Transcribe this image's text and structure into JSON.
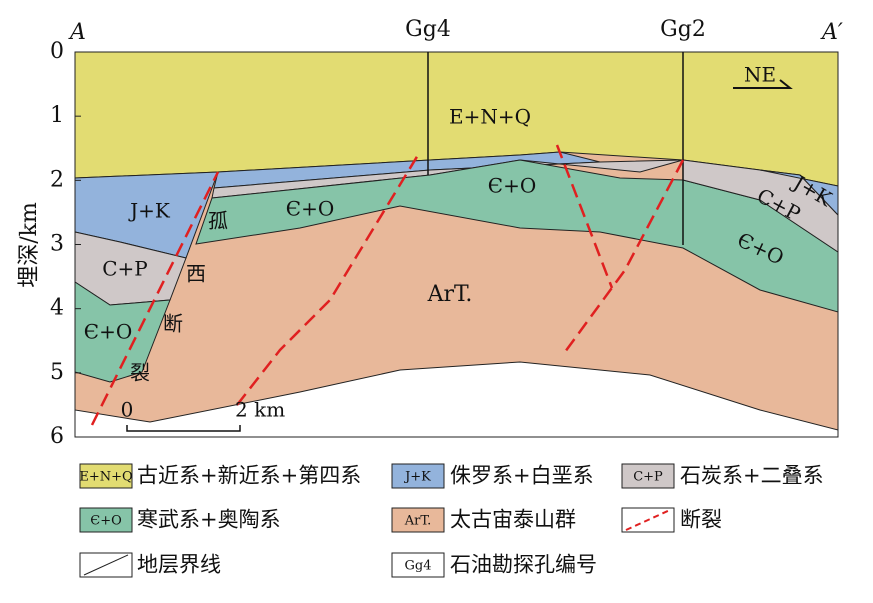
{
  "header": {
    "corner_left": "A",
    "corner_right": "A′",
    "boreholes": [
      "Gg4",
      "Gg2"
    ],
    "direction": "NE"
  },
  "axis": {
    "label": "埋深/km",
    "ticks": [
      0,
      1,
      2,
      3,
      4,
      5,
      6
    ]
  },
  "units": {
    "top": "E+N+Q",
    "jk_left": "J+K",
    "jk_right": "J+K",
    "cp_left": "C+P",
    "cp_right": "C+P",
    "co_left": "Є+O",
    "co_mid": "Є+O",
    "co_center": "Є+O",
    "co_right": "Є+O",
    "archean": "ArT."
  },
  "fault_label": [
    "孤",
    "西",
    "断",
    "裂"
  ],
  "scale": {
    "start": "0",
    "end": "2 km"
  },
  "legend": [
    {
      "symbol": "E+N+Q",
      "text": "古近系+新近系+第四系"
    },
    {
      "symbol": "J+K",
      "text": "侏罗系+白垩系"
    },
    {
      "symbol": "C+P",
      "text": "石炭系+二叠系"
    },
    {
      "symbol": "Є+O",
      "text": "寒武系+奥陶系"
    },
    {
      "symbol": "ArT.",
      "text": "太古宙泰山群"
    },
    {
      "text": "断裂"
    },
    {
      "text": "地层界线"
    },
    {
      "symbol": "Gg4",
      "text": "石油勘探孔编号"
    }
  ]
}
